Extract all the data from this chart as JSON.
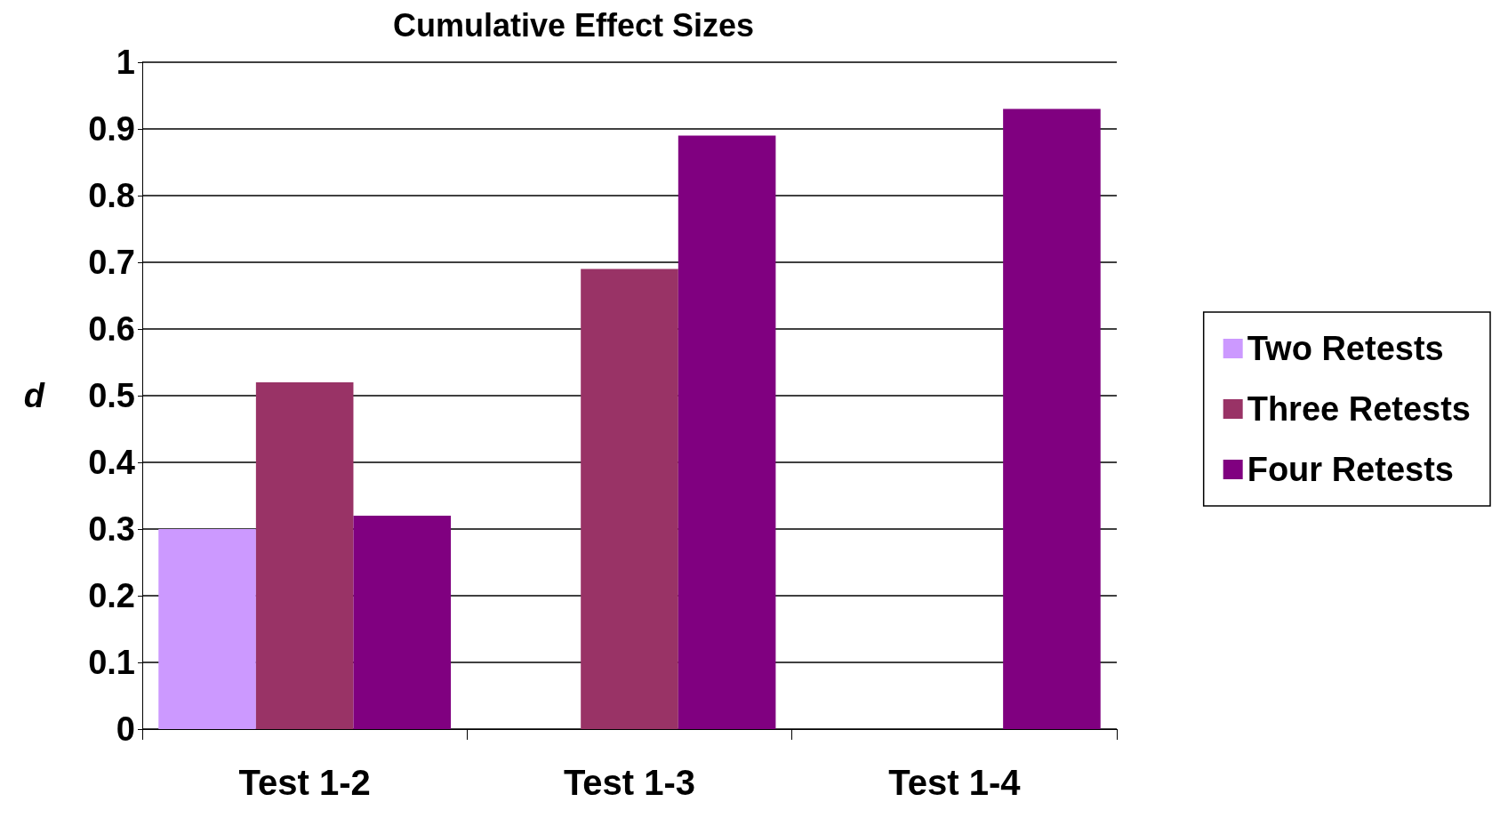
{
  "chart_data": {
    "type": "bar",
    "title": "Cumulative Effect Sizes",
    "ylabel": "d",
    "categories": [
      "Test 1-2",
      "Test 1-3",
      "Test 1-4"
    ],
    "series": [
      {
        "name": "Two Retests",
        "color": "#cc99ff",
        "values": [
          0.3,
          null,
          null
        ]
      },
      {
        "name": "Three Retests",
        "color": "#993366",
        "values": [
          0.52,
          0.69,
          null
        ]
      },
      {
        "name": "Four Retests",
        "color": "#800080",
        "values": [
          0.32,
          0.89,
          0.93
        ]
      }
    ],
    "ylim": [
      0,
      1
    ],
    "yticks": [
      0,
      0.1,
      0.2,
      0.3,
      0.4,
      0.5,
      0.6,
      0.7,
      0.8,
      0.9,
      1
    ],
    "grid": "y",
    "legend": "right"
  }
}
